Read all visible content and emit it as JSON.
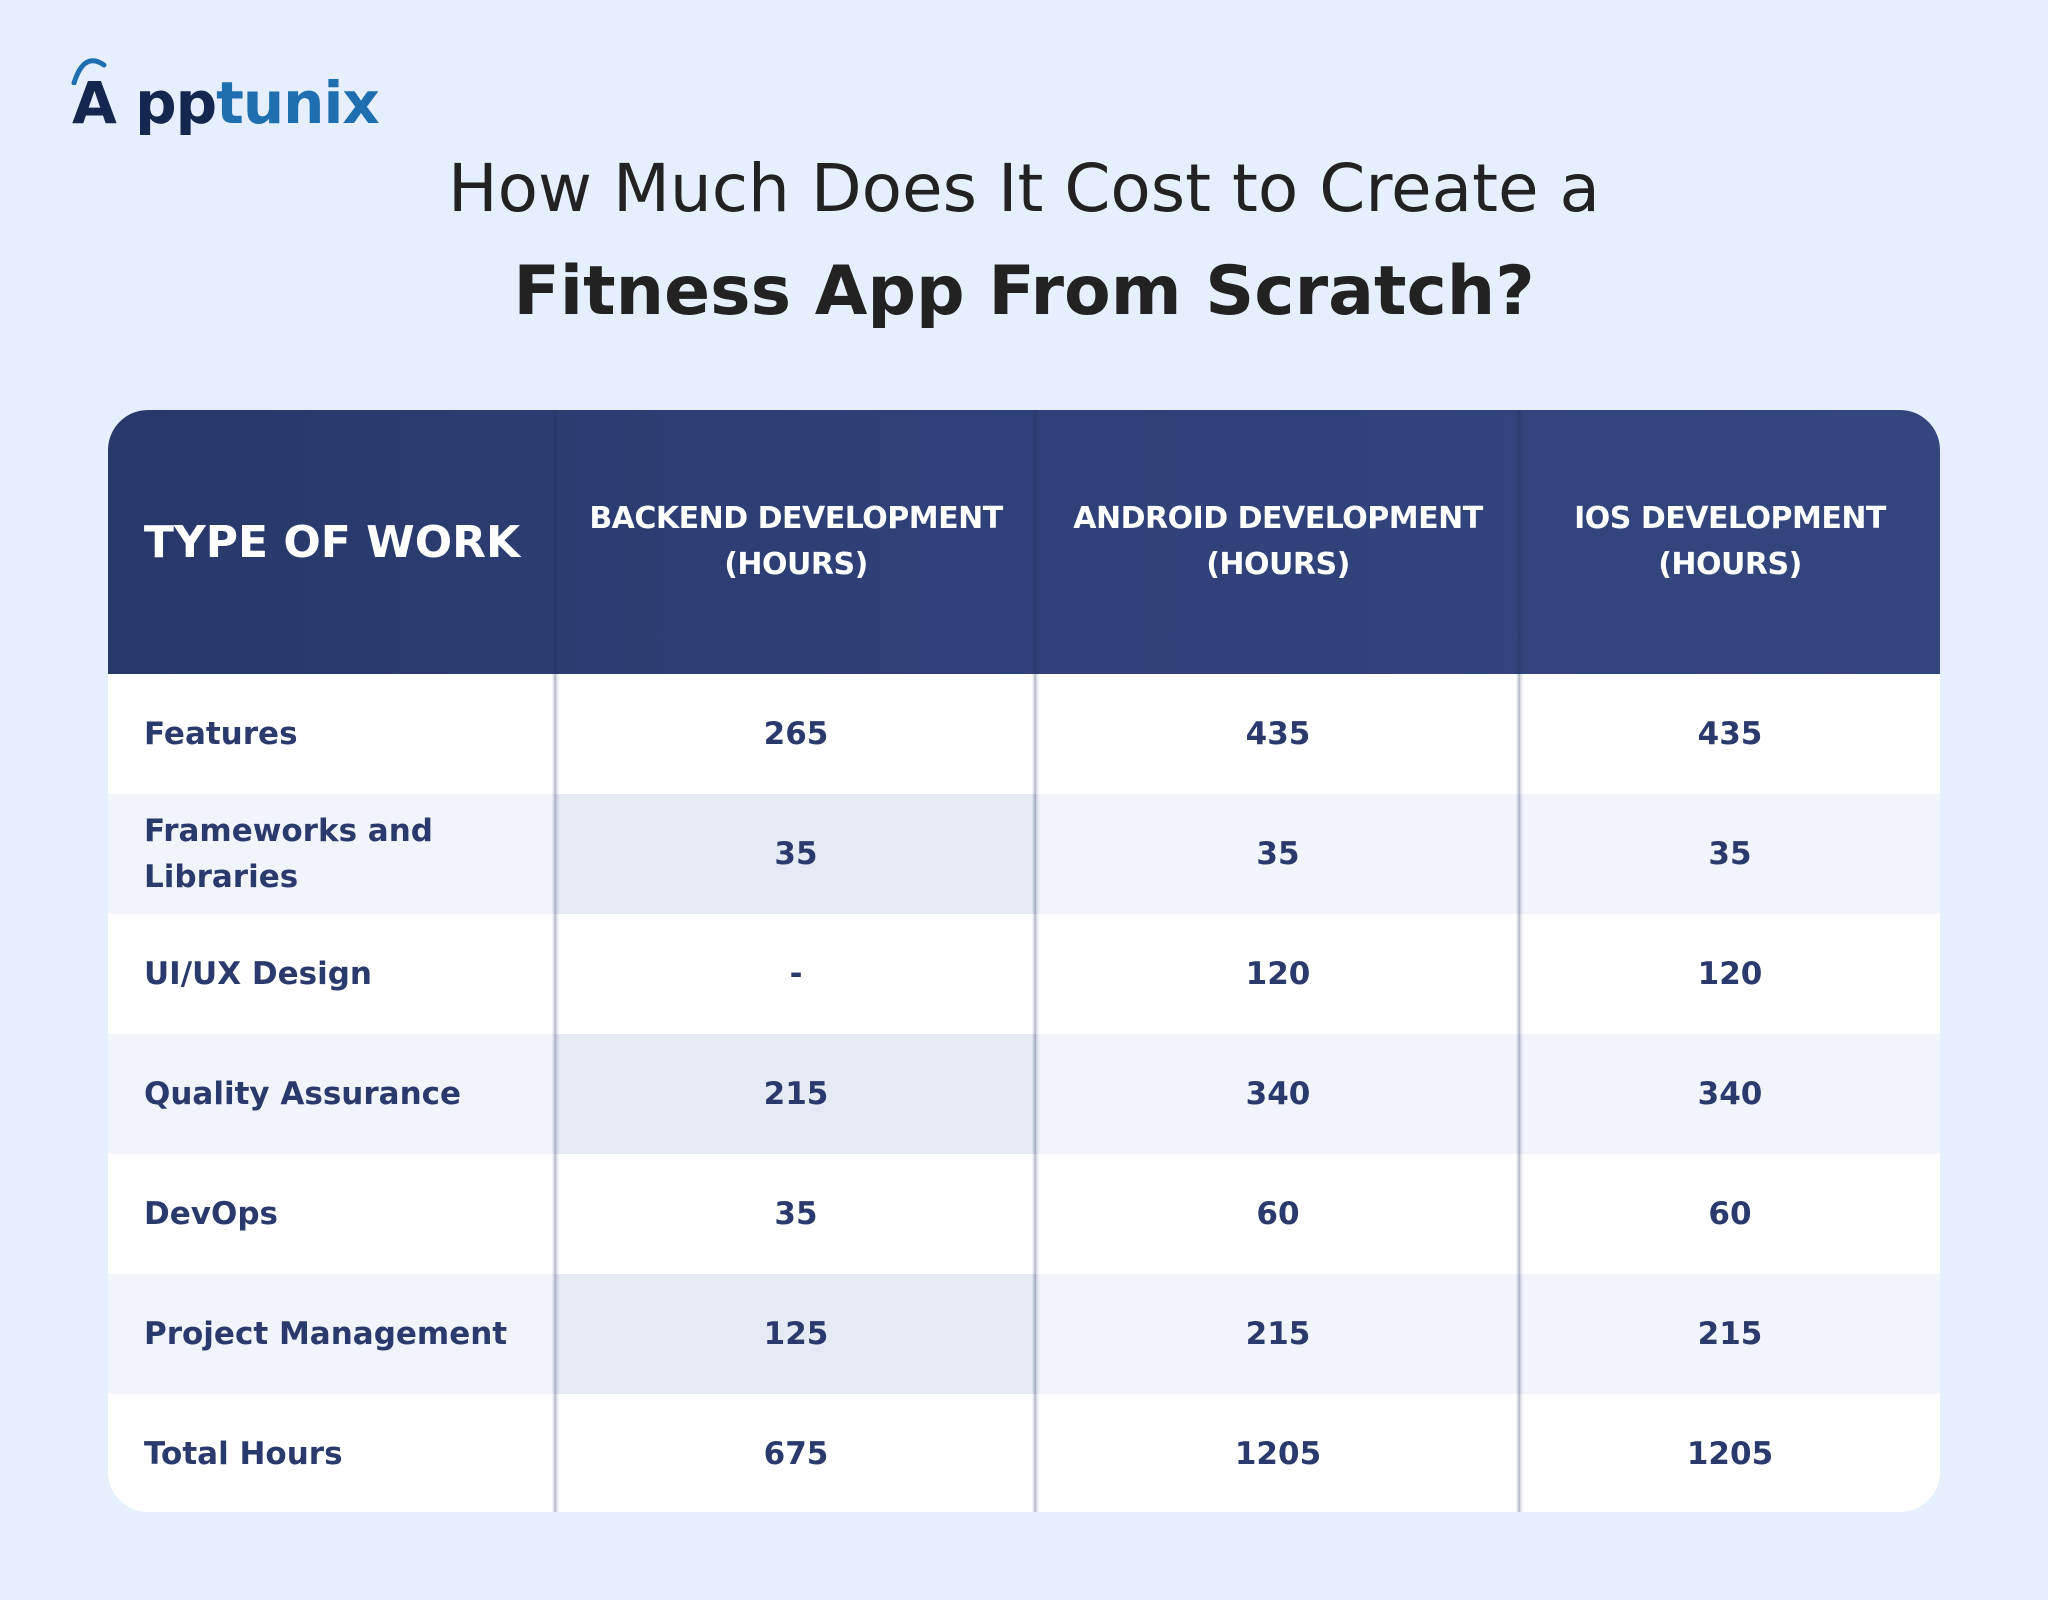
{
  "brand": {
    "logo_a": "A",
    "logo_pp": "pp",
    "logo_tunix": "tunix"
  },
  "title": {
    "line1": "How Much Does It Cost to Create a",
    "line2": "Fitness App From Scratch?"
  },
  "table": {
    "headers": [
      "TYPE OF WORK",
      "BACKEND DEVELOPMENT\n(HOURS)",
      "ANDROID DEVELOPMENT\n(HOURS)",
      "IOS DEVELOPMENT\n(HOURS)"
    ],
    "rows": [
      {
        "label": "Features",
        "backend": "265",
        "android": "435",
        "ios": "435"
      },
      {
        "label": "Frameworks and Libraries",
        "backend": "35",
        "android": "35",
        "ios": "35"
      },
      {
        "label": "UI/UX Design",
        "backend": "-",
        "android": "120",
        "ios": "120"
      },
      {
        "label": "Quality Assurance",
        "backend": "215",
        "android": "340",
        "ios": "340"
      },
      {
        "label": "DevOps",
        "backend": "35",
        "android": "60",
        "ios": "60"
      },
      {
        "label": "Project Management",
        "backend": "125",
        "android": "215",
        "ios": "215"
      },
      {
        "label": "Total Hours",
        "backend": "675",
        "android": "1205",
        "ios": "1205"
      }
    ]
  },
  "colors": {
    "background": "#e5effd",
    "header_bg": "#2e4077",
    "text_dark": "#2b3a6c",
    "logo_dark": "#13274f",
    "logo_accent": "#1f6fb0"
  }
}
